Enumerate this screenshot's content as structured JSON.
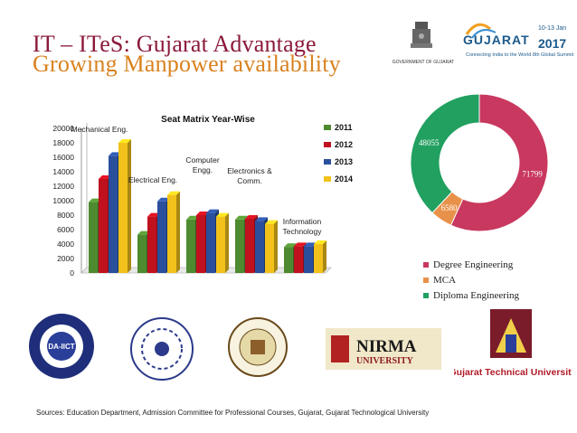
{
  "page": {
    "title_line1": "IT – ITeS: Gujarat Advantage",
    "title_line2": "Growing Manpower availability",
    "emblem_caption": "GOVERNMENT OF GUJARAT",
    "vibrant": {
      "brand": "GUJARAT",
      "year": "2017",
      "dates": "10-13 Jan",
      "tagline": "Connecting India to the World  8th Global Summit"
    },
    "logos": [
      "DA-IICT",
      "NIRMA",
      "UNIVERSITY",
      "Gujarat Technical University"
    ],
    "sources": "Sources: Education Department, Admission Committee for Professional Courses, Gujarat, Gujarat Technological University"
  },
  "colors": {
    "s2011": "#4e8a30",
    "s2012": "#c0111f",
    "s2013": "#2a4f9c",
    "s2014": "#f2c21b",
    "degree": "#c8385f",
    "mca": "#e8914a",
    "diploma": "#21a060",
    "title1": "#8b1a3a",
    "title2": "#d9821f"
  },
  "chart_data": [
    {
      "type": "bar",
      "title": "Seat Matrix Year-Wise",
      "categories": [
        "Mechanical Eng.",
        "Electrical Eng.",
        "Computer Engg.",
        "Electronics & Comm.",
        "Information Technology"
      ],
      "series": [
        {
          "name": "2011",
          "values": [
            9800,
            5300,
            7400,
            7400,
            3600
          ]
        },
        {
          "name": "2012",
          "values": [
            13000,
            7800,
            8000,
            7500,
            3700
          ]
        },
        {
          "name": "2013",
          "values": [
            16200,
            9900,
            8300,
            7200,
            3700
          ]
        },
        {
          "name": "2014",
          "values": [
            18000,
            10800,
            7800,
            6800,
            4000
          ]
        }
      ],
      "ylim": [
        0,
        20000
      ],
      "yticks": [
        "0",
        "2000",
        "4000",
        "6000",
        "8000",
        "10000",
        "12000",
        "14000",
        "16000",
        "18000",
        "20000"
      ],
      "legend_position": "right",
      "grid": false
    },
    {
      "type": "pie",
      "donut": true,
      "labels": [
        "Degree Engineering",
        "MCA",
        "Diploma Engineering"
      ],
      "values": [
        71799,
        6580,
        48055
      ],
      "value_labels": [
        "71799",
        "6580",
        "48055"
      ],
      "legend_position": "bottom"
    }
  ]
}
